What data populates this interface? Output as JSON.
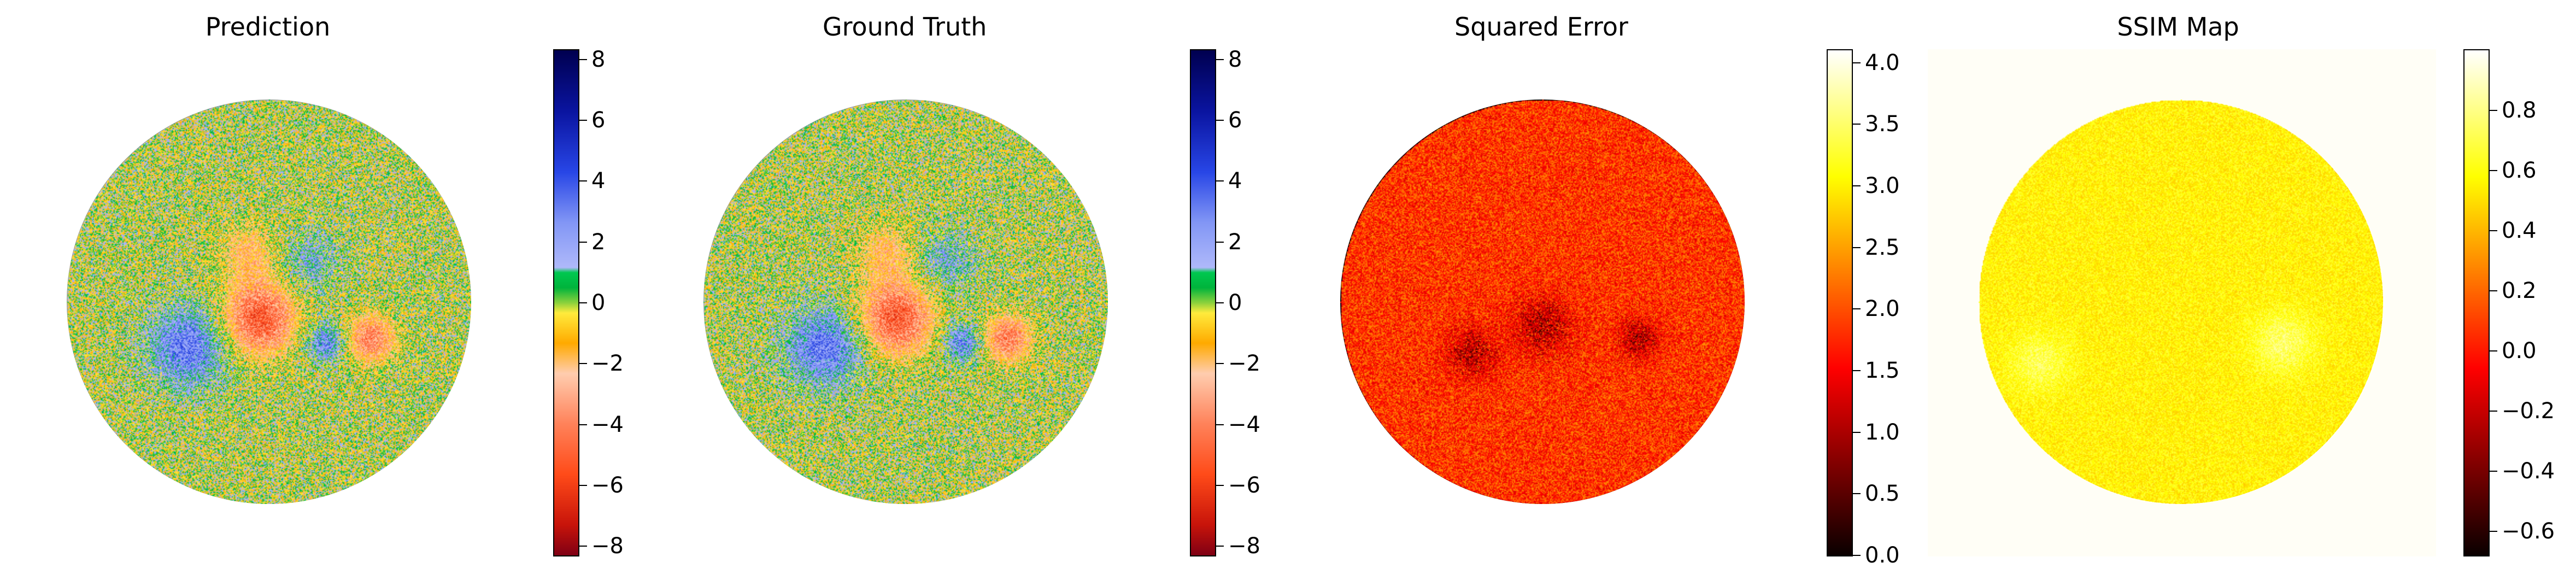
{
  "chart_data": [
    {
      "type": "heatmap",
      "title": "Prediction",
      "colormap": "custom-diverging",
      "colorbar": {
        "min": -8.3,
        "max": 8.3,
        "ticks": [
          8,
          6,
          4,
          2,
          0,
          -2,
          -4,
          -6,
          -8
        ],
        "tick_labels": [
          "8",
          "6",
          "4",
          "2",
          "0",
          "−2",
          "−4",
          "−6",
          "−8"
        ]
      },
      "background": "#ffffff"
    },
    {
      "type": "heatmap",
      "title": "Ground Truth",
      "colormap": "custom-diverging",
      "colorbar": {
        "min": -8.3,
        "max": 8.3,
        "ticks": [
          8,
          6,
          4,
          2,
          0,
          -2,
          -4,
          -6,
          -8
        ],
        "tick_labels": [
          "8",
          "6",
          "4",
          "2",
          "0",
          "−2",
          "−4",
          "−6",
          "−8"
        ]
      },
      "background": "#ffffff"
    },
    {
      "type": "heatmap",
      "title": "Squared Error",
      "colormap": "hot",
      "colorbar": {
        "min": 0.0,
        "max": 4.1,
        "ticks": [
          4.0,
          3.5,
          3.0,
          2.5,
          2.0,
          1.5,
          1.0,
          0.5,
          0.0
        ],
        "tick_labels": [
          "4.0",
          "3.5",
          "3.0",
          "2.5",
          "2.0",
          "1.5",
          "1.0",
          "0.5",
          "0.0"
        ]
      },
      "background": "#ffffff"
    },
    {
      "type": "heatmap",
      "title": "SSIM Map",
      "colormap": "hot",
      "colorbar": {
        "min": -0.68,
        "max": 1.0,
        "ticks": [
          0.8,
          0.6,
          0.4,
          0.2,
          0.0,
          -0.2,
          -0.4,
          -0.6
        ],
        "tick_labels": [
          "0.8",
          "0.6",
          "0.4",
          "0.2",
          "0.0",
          "−0.2",
          "−0.4",
          "−0.6"
        ]
      },
      "background": "#fffef6"
    }
  ]
}
